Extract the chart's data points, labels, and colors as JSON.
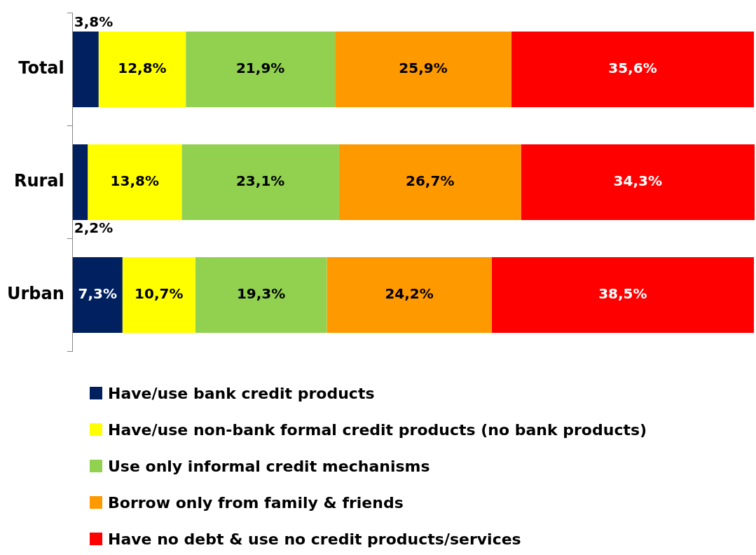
{
  "chart_data": {
    "type": "bar",
    "orientation": "horizontal",
    "stacked": true,
    "categories": [
      "Total",
      "Rural",
      "Urban"
    ],
    "series": [
      {
        "name": "Have/use bank credit products",
        "color": "#002060",
        "values": [
          3.8,
          2.2,
          7.3
        ],
        "value_labels": [
          "3,8%",
          "2,2%",
          "7,3%"
        ]
      },
      {
        "name": "Have/use non-bank formal credit products (no bank products)",
        "color": "#ffff00",
        "values": [
          12.8,
          13.8,
          10.7
        ],
        "value_labels": [
          "12,8%",
          "13,8%",
          "10,7%"
        ]
      },
      {
        "name": "Use only informal credit mechanisms",
        "color": "#92d050",
        "values": [
          21.9,
          23.1,
          19.3
        ],
        "value_labels": [
          "21,9%",
          "23,1%",
          "19,3%"
        ]
      },
      {
        "name": "Borrow only from family & friends",
        "color": "#ff9900",
        "values": [
          25.9,
          26.7,
          24.2
        ],
        "value_labels": [
          "25,9%",
          "26,7%",
          "24,2%"
        ]
      },
      {
        "name": "Have no debt & use no credit products/services",
        "color": "#ff0000",
        "values": [
          35.6,
          34.3,
          38.5
        ],
        "value_labels": [
          "35,6%",
          "34,3%",
          "38,5%"
        ]
      }
    ],
    "legend": "bottom"
  }
}
